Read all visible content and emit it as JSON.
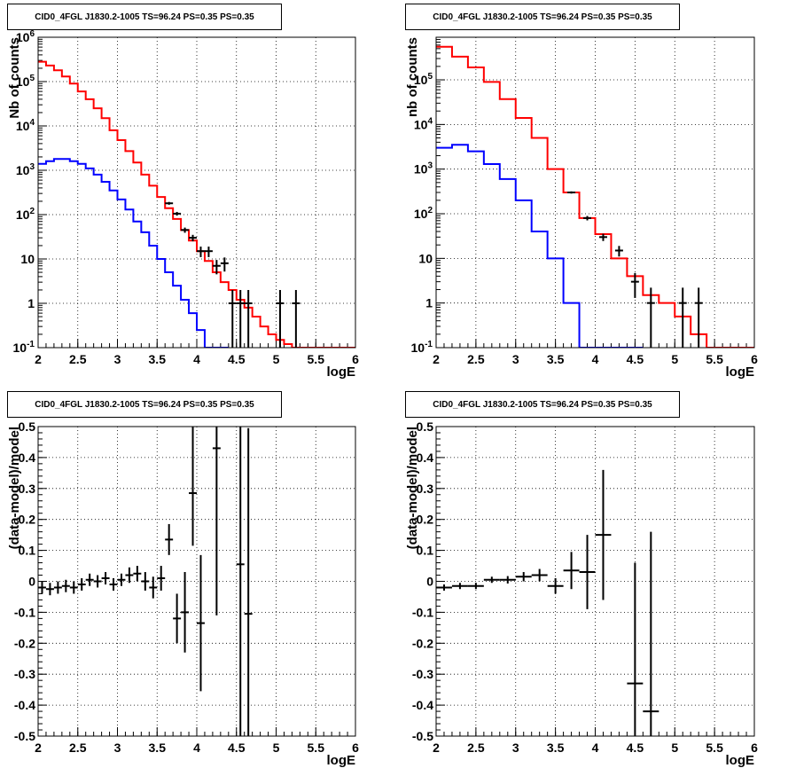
{
  "chart_data": [
    {
      "id": "tl",
      "type": "line",
      "title": "CID0_4FGL J1830.2-1005 TS=96.24 PS=0.35 PS=0.35",
      "xlabel": "logE",
      "ylabel": "Nb of counts",
      "xlim": [
        2,
        6
      ],
      "ylim": [
        0.1,
        1000000
      ],
      "log_y": true,
      "grid": true,
      "x_ticks": [
        "2",
        "2.5",
        "3",
        "3.5",
        "4",
        "4.5",
        "5",
        "5.5",
        "6"
      ],
      "y_ticks": [
        "10^-1",
        "1",
        "10",
        "10^2",
        "10^3",
        "10^4",
        "10^5",
        "10^6"
      ],
      "series": [
        {
          "color": "#ff0000",
          "style": "step",
          "bin_width": 0.1,
          "x": [
            2.0,
            2.1,
            2.2,
            2.3,
            2.4,
            2.5,
            2.6,
            2.7,
            2.8,
            2.9,
            3.0,
            3.1,
            3.2,
            3.3,
            3.4,
            3.5,
            3.6,
            3.7,
            3.8,
            3.9,
            4.0,
            4.1,
            4.2,
            4.3,
            4.4,
            4.5,
            4.6,
            4.7,
            4.8,
            4.9,
            5.0,
            5.1,
            5.2,
            5.3,
            5.4,
            5.5,
            5.6,
            5.7,
            5.8,
            5.9
          ],
          "values": [
            280000,
            230000,
            180000,
            130000,
            90000,
            60000,
            40000,
            25000,
            15000,
            8000,
            4800,
            2700,
            1500,
            800,
            450,
            250,
            140,
            80,
            45,
            26,
            15,
            9,
            5,
            3,
            2,
            1.2,
            0.8,
            0.5,
            0.3,
            0.2,
            0.15,
            0.12,
            0.1,
            0.08,
            0.08,
            0.08,
            0.08,
            0.08,
            0.08,
            0.08
          ]
        },
        {
          "color": "#0000ff",
          "style": "step",
          "bin_width": 0.1,
          "x": [
            2.0,
            2.1,
            2.2,
            2.3,
            2.4,
            2.5,
            2.6,
            2.7,
            2.8,
            2.9,
            3.0,
            3.1,
            3.2,
            3.3,
            3.4,
            3.5,
            3.6,
            3.7,
            3.8,
            3.9,
            4.0,
            4.1,
            4.2,
            4.3
          ],
          "values": [
            1400,
            1600,
            1800,
            1800,
            1600,
            1400,
            1100,
            800,
            550,
            350,
            220,
            130,
            70,
            40,
            20,
            10,
            5,
            2.5,
            1.2,
            0.6,
            0.25,
            0.1,
            0.04,
            0.04
          ]
        },
        {
          "color": "#000000",
          "style": "errorbar",
          "x": [
            3.65,
            3.75,
            3.85,
            3.95,
            4.05,
            4.15,
            4.25,
            4.35,
            4.45,
            4.55,
            4.65,
            5.05,
            5.25
          ],
          "values": [
            180,
            105,
            45,
            30,
            15,
            15,
            7,
            8,
            1,
            1,
            1,
            1,
            1
          ],
          "err_low": [
            13,
            10,
            6,
            5,
            4,
            4,
            2.5,
            2.8,
            0.95,
            0.95,
            0.95,
            0.95,
            0.95
          ],
          "err_high": [
            13,
            10,
            6,
            5,
            4,
            4,
            2.5,
            2.8,
            1,
            1,
            1,
            1,
            1
          ]
        }
      ]
    },
    {
      "id": "tr",
      "type": "line",
      "title": "CID0_4FGL J1830.2-1005 TS=96.24 PS=0.35 PS=0.35",
      "xlabel": "logE",
      "ylabel": "nb of counts",
      "xlim": [
        2,
        6
      ],
      "ylim": [
        0.1,
        900000
      ],
      "log_y": true,
      "grid": true,
      "x_ticks": [
        "2",
        "2.5",
        "3",
        "3.5",
        "4",
        "4.5",
        "5",
        "5.5",
        "6"
      ],
      "y_ticks": [
        "10^-1",
        "1",
        "10",
        "10^2",
        "10^3",
        "10^4",
        "10^5"
      ],
      "series": [
        {
          "color": "#ff0000",
          "style": "step",
          "bin_width": 0.2,
          "x": [
            2.0,
            2.2,
            2.4,
            2.6,
            2.8,
            3.0,
            3.2,
            3.4,
            3.6,
            3.8,
            4.0,
            4.2,
            4.4,
            4.6,
            4.8,
            5.0,
            5.2,
            5.4,
            5.6,
            5.8
          ],
          "values": [
            550000,
            330000,
            190000,
            90000,
            37000,
            14000,
            5000,
            1000,
            300,
            80,
            35,
            10,
            4,
            1.5,
            1,
            0.5,
            0.2,
            0.1,
            0.08,
            0.08
          ]
        },
        {
          "color": "#0000ff",
          "style": "step",
          "bin_width": 0.2,
          "x": [
            2.0,
            2.2,
            2.4,
            2.6,
            2.8,
            3.0,
            3.2,
            3.4,
            3.6,
            3.8,
            4.0,
            4.2,
            4.4
          ],
          "values": [
            3000,
            3500,
            2500,
            1300,
            600,
            200,
            40,
            10,
            1,
            0.08,
            0.08,
            0.08,
            0.08
          ]
        },
        {
          "color": "#000000",
          "style": "errorbar",
          "x": [
            3.7,
            3.9,
            4.1,
            4.3,
            4.5,
            4.7,
            5.1,
            5.3
          ],
          "values": [
            300,
            80,
            30,
            15,
            3,
            1,
            1,
            1
          ],
          "err_low": [
            17,
            9,
            5.5,
            4,
            1.7,
            0.95,
            0.95,
            0.95
          ],
          "err_high": [
            17,
            9,
            5.5,
            4,
            1.7,
            1.2,
            1.2,
            1.2
          ]
        }
      ]
    },
    {
      "id": "bl",
      "type": "scatter",
      "title": "CID0_4FGL J1830.2-1005 TS=96.24 PS=0.35 PS=0.35",
      "xlabel": "logE",
      "ylabel": "(data-model)/model",
      "xlim": [
        2,
        6
      ],
      "ylim": [
        -0.5,
        0.5
      ],
      "grid": true,
      "x_ticks": [
        "2",
        "2.5",
        "3",
        "3.5",
        "4",
        "4.5",
        "5",
        "5.5",
        "6"
      ],
      "y_ticks": [
        "-0.5",
        "-0.4",
        "-0.3",
        "-0.2",
        "-0.1",
        "0",
        "0.1",
        "0.2",
        "0.3",
        "0.4",
        "0.5"
      ],
      "series": [
        {
          "color": "#000000",
          "style": "errorbar",
          "bin_width": 0.1,
          "x": [
            2.05,
            2.15,
            2.25,
            2.35,
            2.45,
            2.55,
            2.65,
            2.75,
            2.85,
            2.95,
            3.05,
            3.15,
            3.25,
            3.35,
            3.45,
            3.55,
            3.65,
            3.75,
            3.85,
            3.95,
            4.05,
            4.25,
            4.55,
            4.65
          ],
          "values": [
            -0.02,
            -0.025,
            -0.02,
            -0.015,
            -0.02,
            -0.01,
            0.005,
            0.0,
            0.01,
            -0.01,
            0.005,
            0.02,
            0.025,
            0.0,
            -0.02,
            0.01,
            0.135,
            -0.12,
            -0.1,
            0.285,
            -0.135,
            0.43,
            0.055,
            -0.105
          ],
          "err_low": [
            0.02,
            0.02,
            0.02,
            0.02,
            0.02,
            0.02,
            0.02,
            0.02,
            0.02,
            0.02,
            0.02,
            0.025,
            0.025,
            0.03,
            0.035,
            0.04,
            0.05,
            0.08,
            0.13,
            0.17,
            0.22,
            0.54,
            0.6,
            0.6
          ],
          "err_high": [
            0.02,
            0.02,
            0.02,
            0.02,
            0.02,
            0.02,
            0.02,
            0.02,
            0.02,
            0.02,
            0.02,
            0.025,
            0.025,
            0.03,
            0.035,
            0.04,
            0.05,
            0.08,
            0.13,
            0.25,
            0.22,
            0.1,
            0.6,
            0.6
          ]
        }
      ]
    },
    {
      "id": "br",
      "type": "scatter",
      "title": "CID0_4FGL J1830.2-1005 TS=96.24 PS=0.35 PS=0.35",
      "xlabel": "logE",
      "ylabel": "(data-model)/model",
      "xlim": [
        2,
        6
      ],
      "ylim": [
        -0.5,
        0.5
      ],
      "grid": true,
      "x_ticks": [
        "2",
        "2.5",
        "3",
        "3.5",
        "4",
        "4.5",
        "5",
        "5.5",
        "6"
      ],
      "y_ticks": [
        "-0.5",
        "-0.4",
        "-0.3",
        "-0.2",
        "-0.1",
        "0",
        "0.1",
        "0.2",
        "0.3",
        "0.4",
        "0.5"
      ],
      "series": [
        {
          "color": "#000000",
          "style": "errorbar",
          "bin_width": 0.2,
          "x": [
            2.1,
            2.3,
            2.5,
            2.7,
            2.9,
            3.1,
            3.3,
            3.5,
            3.7,
            3.9,
            4.1,
            4.5,
            4.7
          ],
          "values": [
            -0.02,
            -0.015,
            -0.015,
            0.005,
            0.005,
            0.015,
            0.02,
            -0.015,
            0.035,
            0.03,
            0.15,
            -0.33,
            -0.42
          ],
          "err_low": [
            0.01,
            0.01,
            0.01,
            0.01,
            0.012,
            0.015,
            0.02,
            0.025,
            0.06,
            0.12,
            0.21,
            0.39,
            0.58
          ],
          "err_high": [
            0.01,
            0.01,
            0.01,
            0.01,
            0.012,
            0.015,
            0.02,
            0.025,
            0.06,
            0.12,
            0.21,
            0.39,
            0.58
          ]
        }
      ]
    }
  ]
}
